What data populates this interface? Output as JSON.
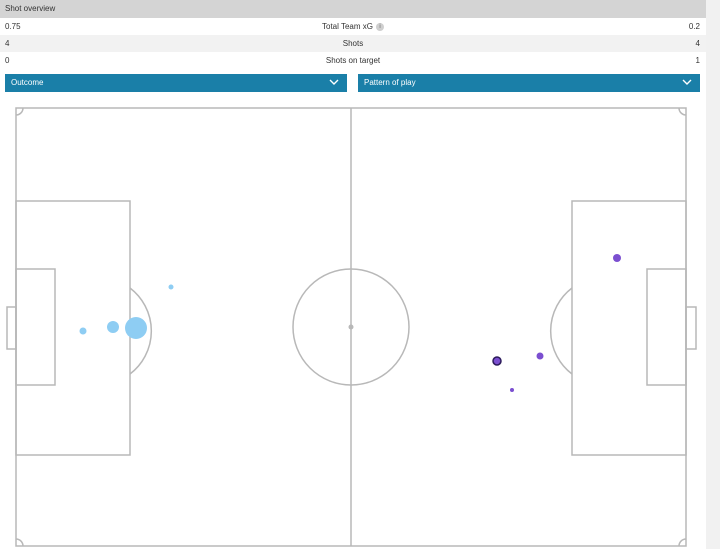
{
  "header": {
    "title": "Shot overview"
  },
  "stats": [
    {
      "label": "Total Team xG",
      "home": "0.75",
      "away": "0.2",
      "info": "i"
    },
    {
      "label": "Shots",
      "home": "4",
      "away": "4"
    },
    {
      "label": "Shots on target",
      "home": "0",
      "away": "1"
    }
  ],
  "filters": {
    "outcome_label": "Outcome",
    "pattern_label": "Pattern of play"
  },
  "colors": {
    "home_shots": "#8ecdf3",
    "away_shots": "#7b4fd0",
    "away_on_target_outline": "#2b1a5a",
    "dropdown_bg": "#1a7fa8",
    "pitch_lines": "#b8b8b8"
  },
  "shots": {
    "home": [
      {
        "xg": "low",
        "on_target": false
      },
      {
        "xg": "medium",
        "on_target": false
      },
      {
        "xg": "high",
        "on_target": false
      },
      {
        "xg": "low",
        "on_target": false
      }
    ],
    "away": [
      {
        "xg": "medium",
        "on_target": false
      },
      {
        "xg": "medium",
        "on_target": true
      },
      {
        "xg": "low",
        "on_target": false
      },
      {
        "xg": "very-low",
        "on_target": false
      }
    ]
  }
}
